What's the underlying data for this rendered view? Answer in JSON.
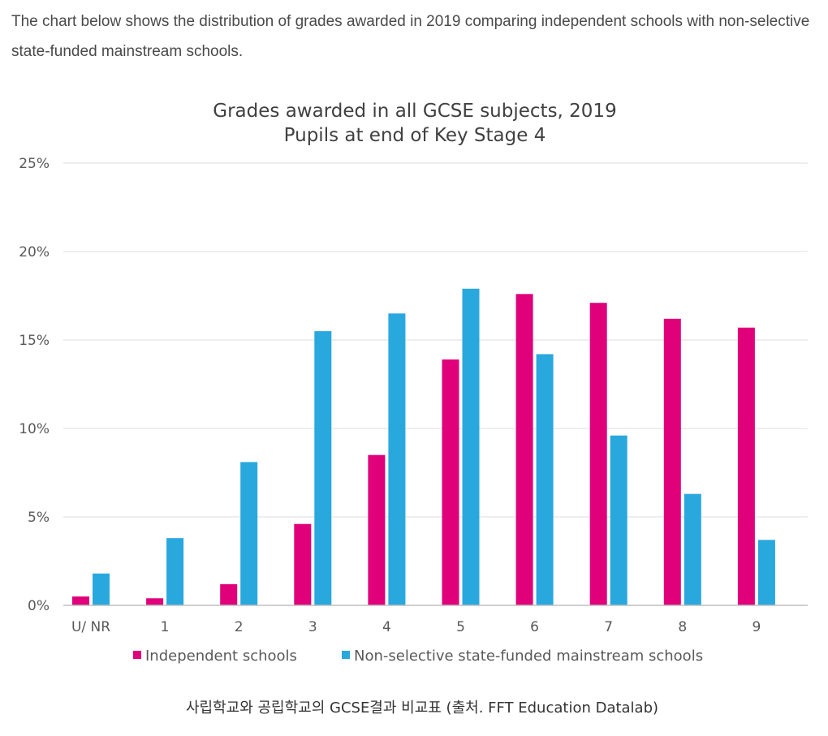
{
  "intro_text": "The chart below shows the distribution of grades awarded in 2019 comparing independent schools with non-selective state-funded mainstream schools.",
  "caption": "사립학교와 공립학교의 GCSE결과 비교표 (출처. FFT Education Datalab)",
  "colors": {
    "independent": "#e0007a",
    "state": "#29a8de",
    "grid": "#dddddd",
    "axis": "#bfbfbf",
    "text": "#595959"
  },
  "chart_data": {
    "type": "bar",
    "title": "Grades awarded in all GCSE subjects, 2019",
    "subtitle": "Pupils at end of Key Stage 4",
    "xlabel": "",
    "ylabel": "",
    "ylim": [
      0,
      25
    ],
    "yticks": [
      0,
      5,
      10,
      15,
      20,
      25
    ],
    "ytick_labels": [
      "0%",
      "5%",
      "10%",
      "15%",
      "20%",
      "25%"
    ],
    "grid": true,
    "legend_position": "bottom",
    "categories": [
      "U/ NR",
      "1",
      "2",
      "3",
      "4",
      "5",
      "6",
      "7",
      "8",
      "9"
    ],
    "series": [
      {
        "name": "Independent schools",
        "color": "#e0007a",
        "values": [
          0.5,
          0.4,
          1.2,
          4.6,
          8.5,
          13.9,
          17.6,
          17.1,
          16.2,
          15.7
        ]
      },
      {
        "name": "Non-selective state-funded mainstream schools",
        "color": "#29a8de",
        "values": [
          1.8,
          3.8,
          8.1,
          15.5,
          16.5,
          17.9,
          14.2,
          9.6,
          6.3,
          3.7
        ]
      }
    ]
  }
}
